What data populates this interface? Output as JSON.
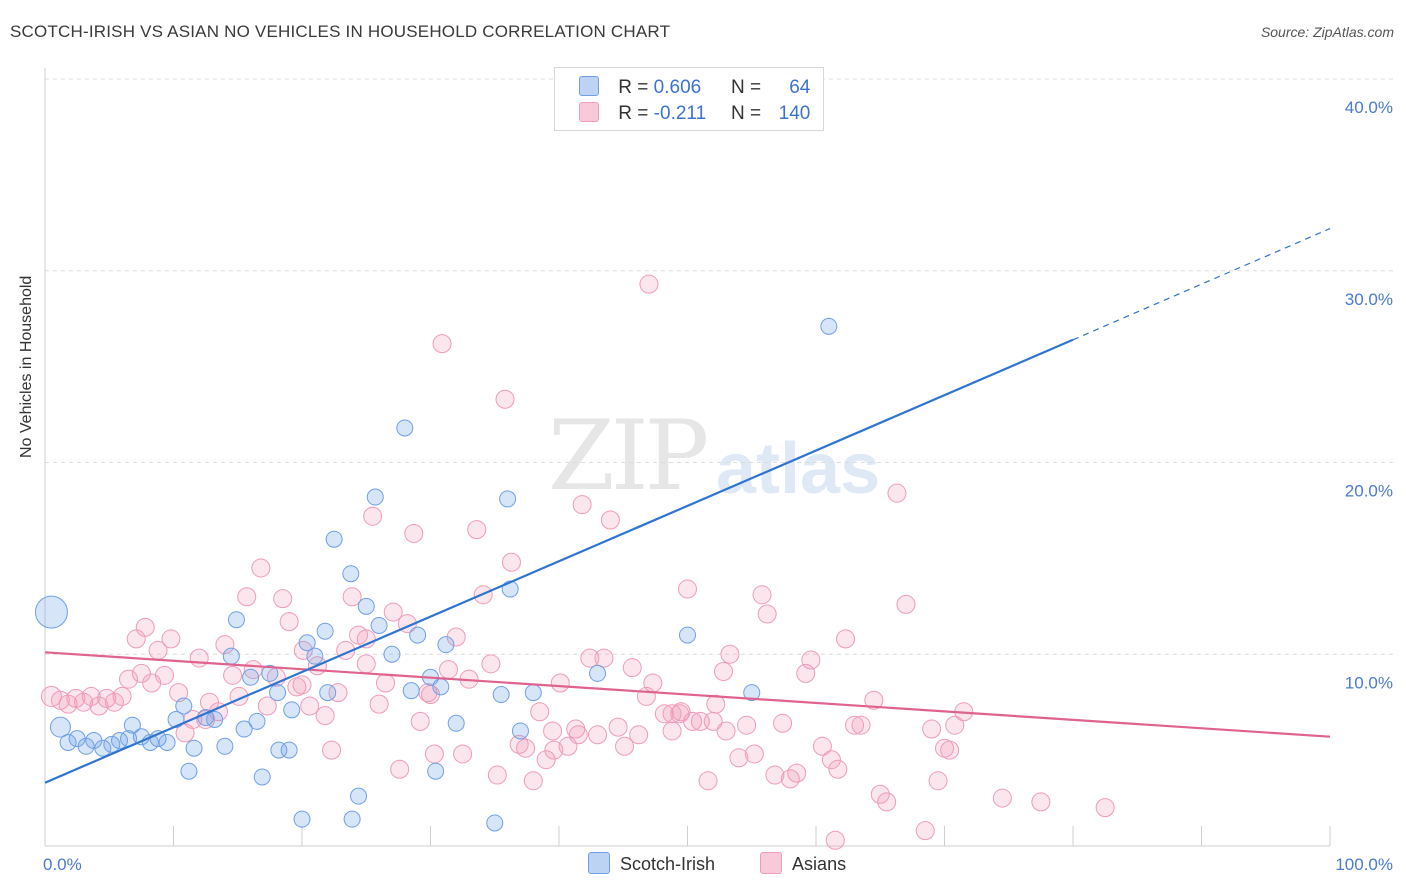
{
  "title": "SCOTCH-IRISH VS ASIAN NO VEHICLES IN HOUSEHOLD CORRELATION CHART",
  "source": "Source: ZipAtlas.com",
  "watermark": {
    "part1": "ZIP",
    "part2": "atlas"
  },
  "colors": {
    "blue": "#6fa0e6",
    "blue_line": "#2e74d1",
    "pink": "#f09bb8",
    "pink_line": "#e0628f",
    "grid": "#dddddd",
    "axis_text": "#4a7bd0"
  },
  "legend": {
    "rows": [
      {
        "r_label": "R =",
        "r_value": "0.606",
        "n_label": "N =",
        "n_value": "64"
      },
      {
        "r_label": "R =",
        "r_value": "-0.211",
        "n_label": "N =",
        "n_value": "140"
      }
    ]
  },
  "bottom_legend": {
    "series1": "Scotch-Irish",
    "series2": "Asians"
  },
  "chart_data": {
    "type": "scatter",
    "title": "SCOTCH-IRISH VS ASIAN NO VEHICLES IN HOUSEHOLD CORRELATION CHART",
    "xlabel": "",
    "ylabel": "No Vehicles in Household",
    "xlim": [
      0,
      100
    ],
    "ylim": [
      0,
      40
    ],
    "x_tick_labels": [
      "0.0%",
      "100.0%"
    ],
    "y_ticks": [
      10,
      20,
      30,
      40
    ],
    "y_tick_labels": [
      "10.0%",
      "20.0%",
      "30.0%",
      "40.0%"
    ],
    "series": [
      {
        "name": "Scotch-Irish",
        "trend": {
          "x0": 0,
          "y0": 3.3,
          "x1": 80,
          "y1": 26.4,
          "dash_to_x": 100,
          "dash_to_y": 32.2
        },
        "points": [
          [
            0.5,
            12.2,
            16
          ],
          [
            1.2,
            6.2,
            10
          ],
          [
            1.8,
            5.4,
            8
          ],
          [
            2.5,
            5.6,
            8
          ],
          [
            3.2,
            5.2,
            8
          ],
          [
            3.8,
            5.5,
            8
          ],
          [
            4.5,
            5.1,
            8
          ],
          [
            5.2,
            5.3,
            8
          ],
          [
            5.8,
            5.5,
            8
          ],
          [
            6.5,
            5.6,
            8
          ],
          [
            6.8,
            6.3,
            8
          ],
          [
            7.5,
            5.7,
            8
          ],
          [
            8.2,
            5.4,
            8
          ],
          [
            8.8,
            5.6,
            8
          ],
          [
            9.5,
            5.4,
            8
          ],
          [
            10.2,
            6.6,
            8
          ],
          [
            10.8,
            7.3,
            8
          ],
          [
            11.2,
            3.9,
            8
          ],
          [
            11.6,
            5.1,
            8
          ],
          [
            12.5,
            6.7,
            8
          ],
          [
            13.2,
            6.6,
            8
          ],
          [
            14.0,
            5.2,
            8
          ],
          [
            14.5,
            9.9,
            8
          ],
          [
            14.9,
            11.8,
            8
          ],
          [
            15.5,
            6.1,
            8
          ],
          [
            16.0,
            8.8,
            8
          ],
          [
            16.5,
            6.5,
            8
          ],
          [
            16.9,
            3.6,
            8
          ],
          [
            17.5,
            9.0,
            8
          ],
          [
            18.1,
            8.0,
            8
          ],
          [
            18.2,
            5.0,
            8
          ],
          [
            19.0,
            5.0,
            8
          ],
          [
            19.2,
            7.1,
            8
          ],
          [
            20.0,
            1.4,
            8
          ],
          [
            20.4,
            10.6,
            8
          ],
          [
            21.0,
            9.9,
            8
          ],
          [
            21.8,
            11.2,
            8
          ],
          [
            22.0,
            8.0,
            8
          ],
          [
            22.5,
            16.0,
            8
          ],
          [
            23.8,
            14.2,
            8
          ],
          [
            23.9,
            1.4,
            8
          ],
          [
            24.4,
            2.6,
            8
          ],
          [
            25.0,
            12.5,
            8
          ],
          [
            25.7,
            18.2,
            8
          ],
          [
            26.0,
            11.5,
            8
          ],
          [
            27.0,
            10.0,
            8
          ],
          [
            28.0,
            21.8,
            8
          ],
          [
            28.5,
            8.1,
            8
          ],
          [
            29.0,
            11.0,
            8
          ],
          [
            30.0,
            8.8,
            8
          ],
          [
            30.4,
            3.9,
            8
          ],
          [
            30.8,
            8.3,
            8
          ],
          [
            31.2,
            10.5,
            8
          ],
          [
            32.0,
            6.4,
            8
          ],
          [
            35.0,
            1.2,
            8
          ],
          [
            35.5,
            7.9,
            8
          ],
          [
            36.0,
            18.1,
            8
          ],
          [
            36.2,
            13.4,
            8
          ],
          [
            37.0,
            6.0,
            8
          ],
          [
            38.0,
            8.0,
            8
          ],
          [
            43.0,
            9.0,
            8
          ],
          [
            50.0,
            11.0,
            8
          ],
          [
            55.0,
            8.0,
            8
          ],
          [
            61.0,
            27.1,
            8
          ]
        ]
      },
      {
        "name": "Asians",
        "trend": {
          "x0": 0,
          "y0": 10.1,
          "x1": 100,
          "y1": 5.7
        },
        "points": [
          [
            0.5,
            7.8,
            10
          ],
          [
            1.2,
            7.6,
            9
          ],
          [
            1.8,
            7.4,
            9
          ],
          [
            2.4,
            7.7,
            9
          ],
          [
            3.0,
            7.5,
            9
          ],
          [
            3.6,
            7.8,
            9
          ],
          [
            4.2,
            7.3,
            9
          ],
          [
            4.8,
            7.7,
            9
          ],
          [
            5.4,
            7.5,
            9
          ],
          [
            6.0,
            7.8,
            9
          ],
          [
            6.5,
            8.7,
            9
          ],
          [
            7.1,
            10.8,
            9
          ],
          [
            7.5,
            9.0,
            9
          ],
          [
            7.8,
            11.4,
            9
          ],
          [
            8.3,
            8.5,
            9
          ],
          [
            8.8,
            10.2,
            9
          ],
          [
            9.3,
            8.9,
            9
          ],
          [
            9.8,
            10.8,
            9
          ],
          [
            10.4,
            8.0,
            9
          ],
          [
            10.9,
            5.9,
            9
          ],
          [
            11.5,
            6.6,
            9
          ],
          [
            12.0,
            9.8,
            9
          ],
          [
            12.5,
            6.6,
            9
          ],
          [
            12.8,
            7.5,
            9
          ],
          [
            13.5,
            7.0,
            9
          ],
          [
            14.0,
            10.5,
            9
          ],
          [
            14.6,
            8.9,
            9
          ],
          [
            15.1,
            7.8,
            9
          ],
          [
            15.7,
            13.0,
            9
          ],
          [
            16.2,
            9.2,
            9
          ],
          [
            16.8,
            14.5,
            9
          ],
          [
            17.3,
            7.3,
            9
          ],
          [
            18.0,
            8.8,
            9
          ],
          [
            18.5,
            12.9,
            9
          ],
          [
            19.0,
            11.7,
            9
          ],
          [
            19.6,
            8.3,
            9
          ],
          [
            20.1,
            10.2,
            9
          ],
          [
            20.6,
            7.3,
            9
          ],
          [
            21.2,
            9.4,
            9
          ],
          [
            21.8,
            6.8,
            9
          ],
          [
            22.3,
            5.0,
            9
          ],
          [
            22.8,
            8.0,
            9
          ],
          [
            23.4,
            10.2,
            9
          ],
          [
            23.9,
            13.0,
            9
          ],
          [
            24.4,
            11.0,
            9
          ],
          [
            25.0,
            9.5,
            9
          ],
          [
            25.5,
            17.2,
            9
          ],
          [
            26.0,
            7.4,
            9
          ],
          [
            26.5,
            8.5,
            9
          ],
          [
            27.1,
            12.2,
            9
          ],
          [
            27.6,
            4.0,
            9
          ],
          [
            28.2,
            11.6,
            9
          ],
          [
            28.7,
            16.3,
            9
          ],
          [
            29.2,
            6.5,
            9
          ],
          [
            29.8,
            8.0,
            9
          ],
          [
            30.3,
            4.8,
            9
          ],
          [
            30.9,
            26.2,
            9
          ],
          [
            31.4,
            9.2,
            9
          ],
          [
            32.0,
            10.9,
            9
          ],
          [
            32.5,
            4.8,
            9
          ],
          [
            33.0,
            8.7,
            9
          ],
          [
            33.6,
            16.5,
            9
          ],
          [
            34.1,
            13.1,
            9
          ],
          [
            34.7,
            9.5,
            9
          ],
          [
            35.2,
            3.7,
            9
          ],
          [
            35.8,
            23.3,
            9
          ],
          [
            36.3,
            14.8,
            9
          ],
          [
            36.9,
            5.3,
            9
          ],
          [
            37.4,
            5.1,
            9
          ],
          [
            38.0,
            3.4,
            9
          ],
          [
            38.5,
            7.0,
            9
          ],
          [
            39.0,
            4.5,
            9
          ],
          [
            39.6,
            5.0,
            9
          ],
          [
            40.1,
            8.5,
            9
          ],
          [
            40.7,
            5.2,
            9
          ],
          [
            41.3,
            6.1,
            9
          ],
          [
            41.8,
            17.8,
            9
          ],
          [
            42.4,
            9.8,
            9
          ],
          [
            43.0,
            5.8,
            9
          ],
          [
            43.5,
            9.8,
            9
          ],
          [
            44.0,
            17.0,
            9
          ],
          [
            44.6,
            6.2,
            9
          ],
          [
            45.1,
            5.2,
            9
          ],
          [
            45.7,
            9.3,
            9
          ],
          [
            46.2,
            5.8,
            9
          ],
          [
            46.8,
            7.8,
            9
          ],
          [
            47.3,
            8.5,
            9
          ],
          [
            48.2,
            6.9,
            9
          ],
          [
            48.8,
            6.0,
            9
          ],
          [
            49.4,
            6.9,
            9
          ],
          [
            50.0,
            13.4,
            9
          ],
          [
            50.4,
            6.5,
            9
          ],
          [
            51.0,
            6.5,
            9
          ],
          [
            51.6,
            3.4,
            9
          ],
          [
            52.2,
            7.4,
            9
          ],
          [
            52.8,
            9.1,
            9
          ],
          [
            53.3,
            10.0,
            9
          ],
          [
            54.0,
            4.6,
            9
          ],
          [
            54.6,
            6.3,
            9
          ],
          [
            55.2,
            4.8,
            9
          ],
          [
            55.8,
            13.1,
            9
          ],
          [
            56.2,
            12.1,
            9
          ],
          [
            56.8,
            3.7,
            9
          ],
          [
            57.4,
            6.4,
            9
          ],
          [
            58.0,
            3.5,
            9
          ],
          [
            58.5,
            3.8,
            9
          ],
          [
            59.2,
            9.0,
            9
          ],
          [
            59.6,
            9.7,
            9
          ],
          [
            60.5,
            5.2,
            9
          ],
          [
            61.2,
            4.5,
            9
          ],
          [
            61.7,
            4.0,
            9
          ],
          [
            62.3,
            10.8,
            9
          ],
          [
            63.0,
            6.3,
            9
          ],
          [
            63.5,
            6.3,
            9
          ],
          [
            64.5,
            7.6,
            9
          ],
          [
            65.0,
            2.7,
            9
          ],
          [
            65.5,
            2.3,
            9
          ],
          [
            66.3,
            18.4,
            9
          ],
          [
            67.0,
            12.6,
            9
          ],
          [
            68.5,
            0.8,
            9
          ],
          [
            69.0,
            6.1,
            9
          ],
          [
            69.5,
            3.4,
            9
          ],
          [
            70.0,
            5.1,
            9
          ],
          [
            70.4,
            5.0,
            9
          ],
          [
            70.8,
            6.3,
            9
          ],
          [
            74.5,
            2.5,
            9
          ],
          [
            77.5,
            2.3,
            9
          ],
          [
            82.5,
            2.0,
            9
          ],
          [
            71.5,
            7.0,
            9
          ],
          [
            47.0,
            29.3,
            9
          ],
          [
            48.8,
            6.9,
            9
          ],
          [
            49.5,
            7.0,
            9
          ],
          [
            52.0,
            6.5,
            9
          ],
          [
            41.5,
            5.8,
            9
          ],
          [
            53.0,
            6.0,
            9
          ],
          [
            39.5,
            6.0,
            9
          ],
          [
            61.5,
            0.3,
            9
          ],
          [
            30.0,
            7.9,
            9
          ],
          [
            25.0,
            10.8,
            9
          ],
          [
            20.0,
            8.4,
            9
          ]
        ]
      }
    ]
  }
}
